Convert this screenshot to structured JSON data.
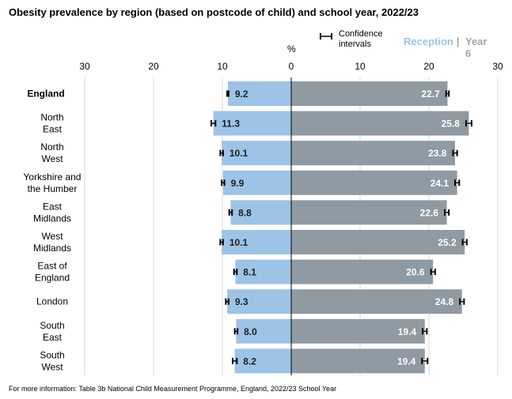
{
  "title": "Obesity prevalence by region (based on postcode of child) and school year, 2022/23",
  "footnote": "For more information: Table 3b National Child Measurement Programme, England, 2022/23 School Year",
  "legend": {
    "ci_label": "Confidence intervals",
    "reception_label": "Reception",
    "separator": "|",
    "year6_label": "Year 6"
  },
  "axis_unit": "%",
  "colors": {
    "reception": "#9dc3e6",
    "year6": "#8f9aa3",
    "reception_legend": "#9dc3e6",
    "year6_legend": "#a5a5a5",
    "gridline": "#d9d9d9",
    "axis": "#000000"
  },
  "chart_data": {
    "type": "bar",
    "orientation": "horizontal-diverging",
    "categories": [
      "England",
      "North East",
      "North West",
      "Yorkshire and the Humber",
      "East Midlands",
      "West Midlands",
      "East of England",
      "London",
      "South East",
      "South West"
    ],
    "category_lines": [
      [
        "England"
      ],
      [
        "North",
        "East"
      ],
      [
        "North",
        "West"
      ],
      [
        "Yorkshire and",
        "the Humber"
      ],
      [
        "East",
        "Midlands"
      ],
      [
        "West",
        "Midlands"
      ],
      [
        "East of",
        "England"
      ],
      [
        "London"
      ],
      [
        "South",
        "East"
      ],
      [
        "South",
        "West"
      ]
    ],
    "series": [
      {
        "name": "Reception",
        "direction": "left",
        "values": [
          9.2,
          11.3,
          10.1,
          9.9,
          8.8,
          10.1,
          8.1,
          9.3,
          8.0,
          8.2
        ],
        "labels": [
          "9.2",
          "11.3",
          "10.1",
          "9.9",
          "8.8",
          "10.1",
          "8.1",
          "9.3",
          "8.0",
          "8.2"
        ],
        "ci": [
          [
            9.1,
            9.3
          ],
          [
            11.0,
            11.6
          ],
          [
            9.9,
            10.3
          ],
          [
            9.7,
            10.1
          ],
          [
            8.6,
            9.0
          ],
          [
            9.9,
            10.3
          ],
          [
            7.9,
            8.3
          ],
          [
            9.1,
            9.5
          ],
          [
            7.8,
            8.2
          ],
          [
            7.9,
            8.5
          ]
        ]
      },
      {
        "name": "Year 6",
        "direction": "right",
        "values": [
          22.7,
          25.8,
          23.8,
          24.1,
          22.6,
          25.2,
          20.6,
          24.8,
          19.4,
          19.4
        ],
        "labels": [
          "22.7",
          "25.8",
          "23.8",
          "24.1",
          "22.6",
          "25.2",
          "20.6",
          "24.8",
          "19.4",
          "19.4"
        ],
        "ci": [
          [
            22.5,
            22.9
          ],
          [
            25.4,
            26.2
          ],
          [
            23.5,
            24.1
          ],
          [
            23.8,
            24.4
          ],
          [
            22.3,
            22.9
          ],
          [
            24.9,
            25.5
          ],
          [
            20.3,
            20.9
          ],
          [
            24.5,
            25.1
          ],
          [
            19.1,
            19.7
          ],
          [
            19.0,
            19.8
          ]
        ]
      }
    ],
    "x_ticks": [
      30,
      20,
      10,
      0,
      10,
      20,
      30
    ],
    "xlim": [
      -30,
      30
    ],
    "grid": true
  }
}
